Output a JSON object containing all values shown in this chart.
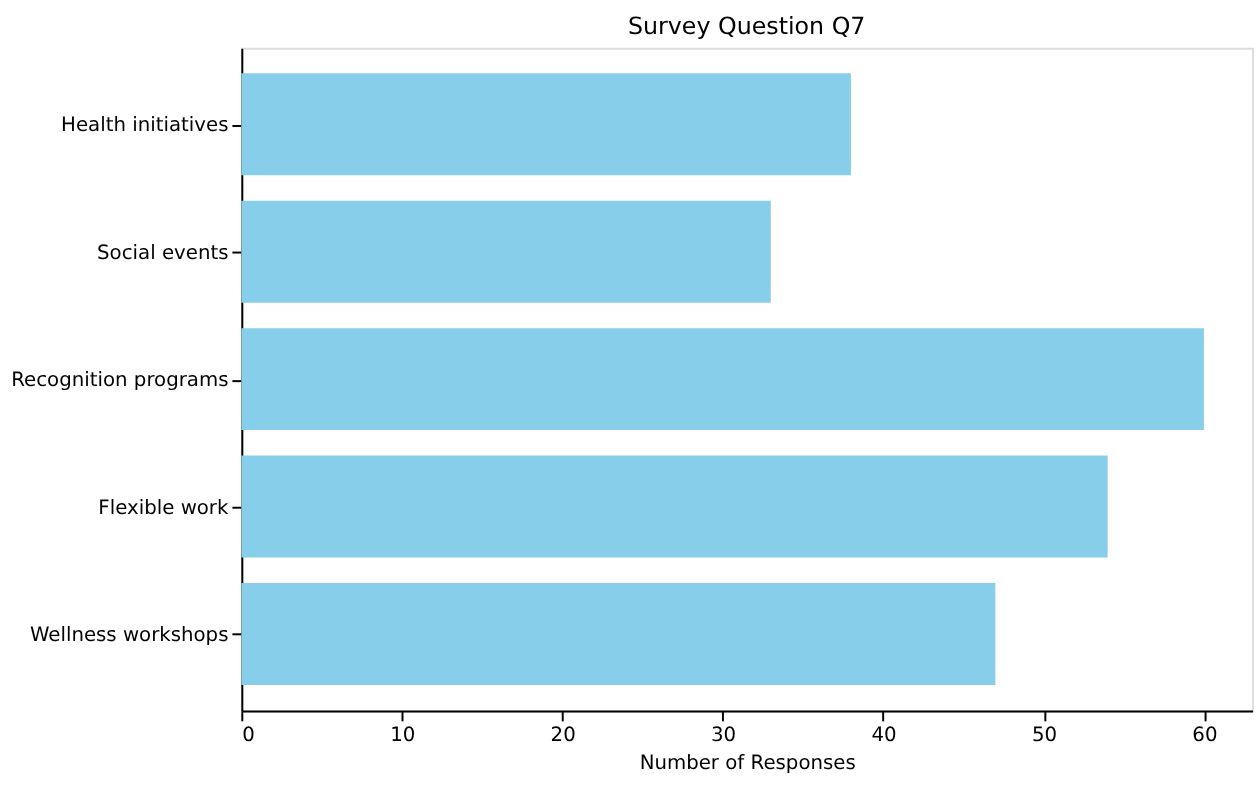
{
  "chart_data": {
    "type": "bar",
    "orientation": "horizontal",
    "title": "Survey Question Q7",
    "xlabel": "Number of Responses",
    "categories": [
      "Health initiatives",
      "Social events",
      "Recognition programs",
      "Flexible work",
      "Wellness workshops"
    ],
    "values": [
      38,
      33,
      60,
      54,
      47
    ],
    "color": "#87ceeb",
    "xlim": [
      0,
      63
    ],
    "xticks": [
      0,
      10,
      20,
      30,
      40,
      50,
      60
    ],
    "grid": false
  }
}
